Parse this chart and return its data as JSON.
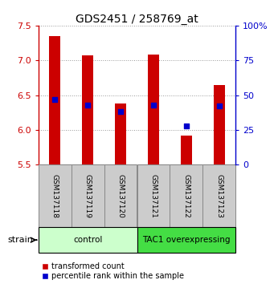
{
  "title": "GDS2451 / 258769_at",
  "samples": [
    "GSM137118",
    "GSM137119",
    "GSM137120",
    "GSM137121",
    "GSM137122",
    "GSM137123"
  ],
  "transformed_counts": [
    7.35,
    7.07,
    6.38,
    7.08,
    5.92,
    6.65
  ],
  "percentile_ranks": [
    47,
    43,
    38,
    43,
    28,
    42
  ],
  "ylim_left": [
    5.5,
    7.5
  ],
  "ylim_right": [
    0,
    100
  ],
  "yticks_left": [
    5.5,
    6.0,
    6.5,
    7.0,
    7.5
  ],
  "yticks_right": [
    0,
    25,
    50,
    75,
    100
  ],
  "ytick_labels_right": [
    "0",
    "25",
    "50",
    "75",
    "100%"
  ],
  "bar_bottom": 5.5,
  "bar_color": "#cc0000",
  "dot_color": "#0000cc",
  "groups": [
    {
      "label": "control",
      "indices": [
        0,
        1,
        2
      ],
      "color": "#ccffcc"
    },
    {
      "label": "TAC1 overexpressing",
      "indices": [
        3,
        4,
        5
      ],
      "color": "#44dd44"
    }
  ],
  "group_label": "strain",
  "legend_items": [
    {
      "color": "#cc0000",
      "label": "transformed count"
    },
    {
      "color": "#0000cc",
      "label": "percentile rank within the sample"
    }
  ],
  "bar_width": 0.35,
  "dot_size": 22,
  "grid_color": "#999999",
  "sample_box_color": "#cccccc",
  "sample_box_edge": "#888888",
  "ax_left_color": "#cc0000",
  "ax_right_color": "#0000cc"
}
